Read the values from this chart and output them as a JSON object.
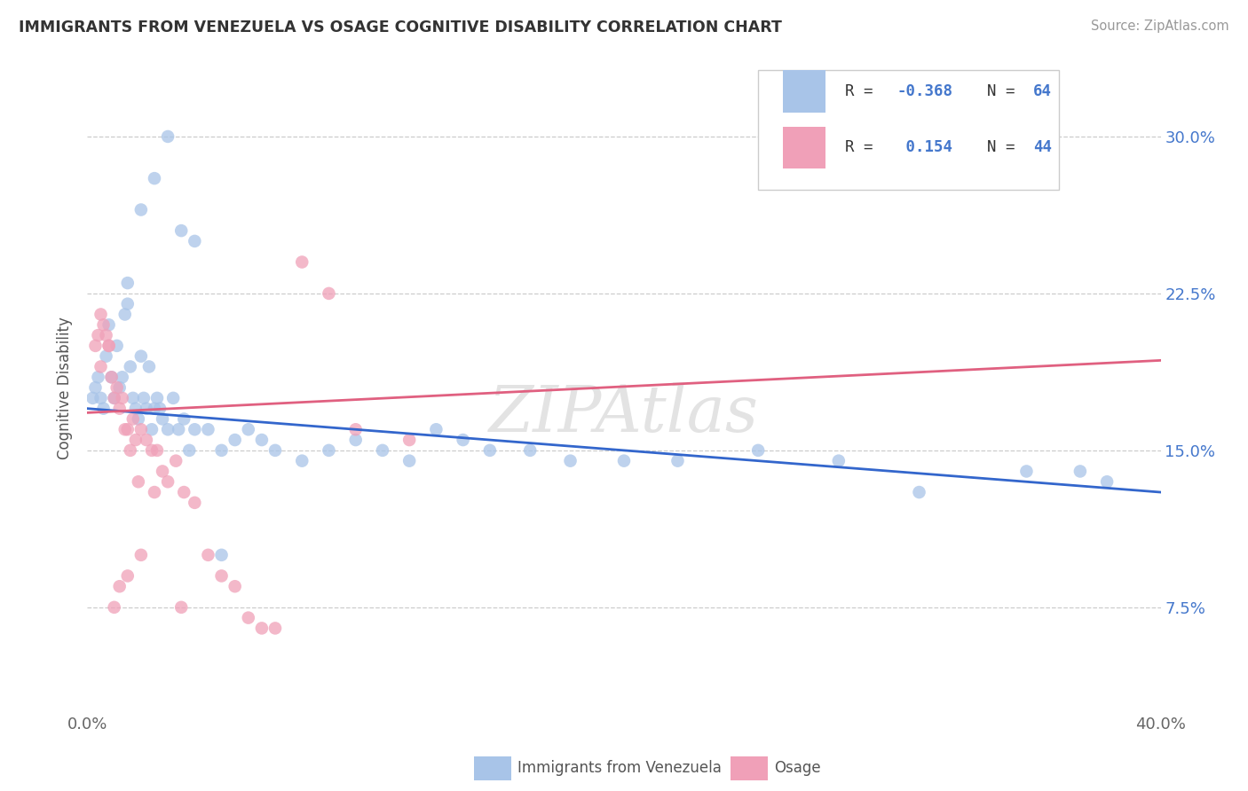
{
  "title": "IMMIGRANTS FROM VENEZUELA VS OSAGE COGNITIVE DISABILITY CORRELATION CHART",
  "source": "Source: ZipAtlas.com",
  "ylabel_label": "Cognitive Disability",
  "yticks": [
    "7.5%",
    "15.0%",
    "22.5%",
    "30.0%"
  ],
  "ytick_vals": [
    0.075,
    0.15,
    0.225,
    0.3
  ],
  "xlim": [
    0.0,
    0.4
  ],
  "ylim": [
    0.025,
    0.335
  ],
  "blue_color": "#A8C4E8",
  "pink_color": "#F0A0B8",
  "blue_line_color": "#3366CC",
  "pink_line_color": "#E06080",
  "watermark": "ZIPAtlas",
  "legend_items": [
    {
      "r": "-0.368",
      "n": "64"
    },
    {
      "r": " 0.154",
      "n": "44"
    }
  ],
  "blue_scatter_x": [
    0.002,
    0.003,
    0.004,
    0.005,
    0.006,
    0.007,
    0.008,
    0.009,
    0.01,
    0.011,
    0.012,
    0.013,
    0.014,
    0.015,
    0.016,
    0.017,
    0.018,
    0.019,
    0.02,
    0.021,
    0.022,
    0.023,
    0.024,
    0.025,
    0.026,
    0.027,
    0.028,
    0.03,
    0.032,
    0.034,
    0.036,
    0.038,
    0.04,
    0.045,
    0.05,
    0.055,
    0.06,
    0.065,
    0.07,
    0.08,
    0.09,
    0.1,
    0.11,
    0.12,
    0.13,
    0.14,
    0.15,
    0.165,
    0.18,
    0.2,
    0.22,
    0.25,
    0.28,
    0.31,
    0.35,
    0.38,
    0.015,
    0.02,
    0.025,
    0.03,
    0.035,
    0.04,
    0.05,
    0.37
  ],
  "blue_scatter_y": [
    0.175,
    0.18,
    0.185,
    0.175,
    0.17,
    0.195,
    0.21,
    0.185,
    0.175,
    0.2,
    0.18,
    0.185,
    0.215,
    0.22,
    0.19,
    0.175,
    0.17,
    0.165,
    0.195,
    0.175,
    0.17,
    0.19,
    0.16,
    0.17,
    0.175,
    0.17,
    0.165,
    0.16,
    0.175,
    0.16,
    0.165,
    0.15,
    0.16,
    0.16,
    0.15,
    0.155,
    0.16,
    0.155,
    0.15,
    0.145,
    0.15,
    0.155,
    0.15,
    0.145,
    0.16,
    0.155,
    0.15,
    0.15,
    0.145,
    0.145,
    0.145,
    0.15,
    0.145,
    0.13,
    0.14,
    0.135,
    0.23,
    0.265,
    0.28,
    0.3,
    0.255,
    0.25,
    0.1,
    0.14
  ],
  "pink_scatter_x": [
    0.003,
    0.004,
    0.005,
    0.006,
    0.007,
    0.008,
    0.009,
    0.01,
    0.011,
    0.012,
    0.013,
    0.014,
    0.015,
    0.016,
    0.017,
    0.018,
    0.019,
    0.02,
    0.022,
    0.024,
    0.026,
    0.028,
    0.03,
    0.033,
    0.036,
    0.04,
    0.045,
    0.05,
    0.055,
    0.065,
    0.07,
    0.08,
    0.09,
    0.1,
    0.12,
    0.005,
    0.008,
    0.01,
    0.012,
    0.015,
    0.02,
    0.025,
    0.035,
    0.06
  ],
  "pink_scatter_y": [
    0.2,
    0.205,
    0.215,
    0.21,
    0.205,
    0.2,
    0.185,
    0.175,
    0.18,
    0.17,
    0.175,
    0.16,
    0.16,
    0.15,
    0.165,
    0.155,
    0.135,
    0.16,
    0.155,
    0.15,
    0.15,
    0.14,
    0.135,
    0.145,
    0.13,
    0.125,
    0.1,
    0.09,
    0.085,
    0.065,
    0.065,
    0.24,
    0.225,
    0.16,
    0.155,
    0.19,
    0.2,
    0.075,
    0.085,
    0.09,
    0.1,
    0.13,
    0.075,
    0.07
  ]
}
